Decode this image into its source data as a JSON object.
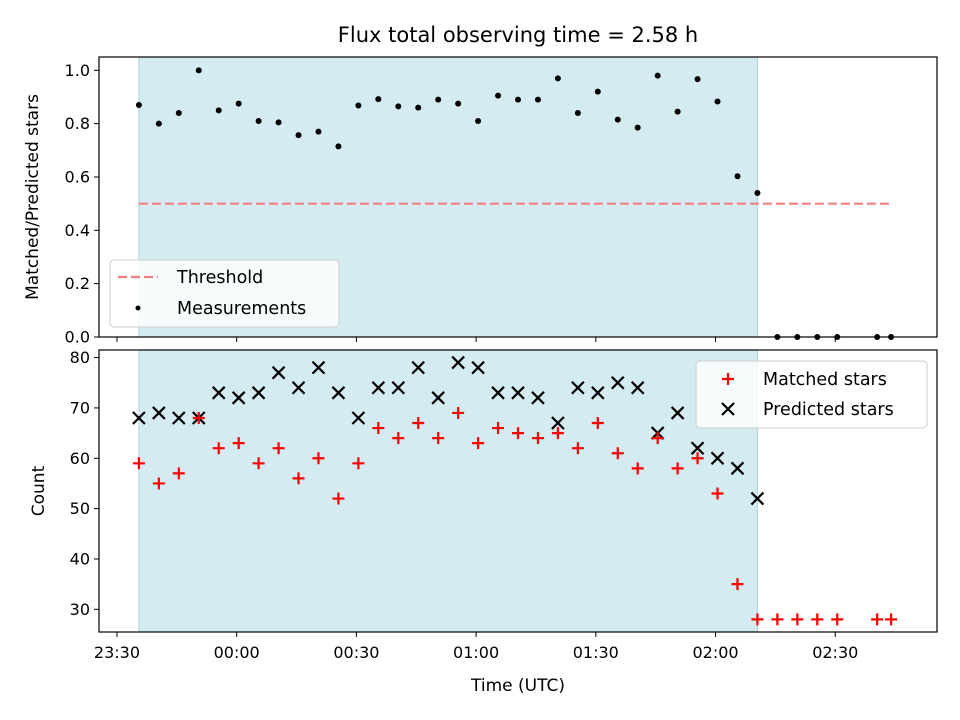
{
  "chart_data": {
    "type": "scatter",
    "title": "Flux total observing time = 2.58 h",
    "xlabel": "Time (UTC)",
    "x_tick_labels": [
      "23:30",
      "00:00",
      "00:30",
      "01:00",
      "01:30",
      "02:00",
      "02:30"
    ],
    "x_tick_minutes": [
      -30,
      0,
      30,
      60,
      90,
      120,
      150
    ],
    "xlim_minutes": [
      -34.5,
      175.5
    ],
    "shaded_span_minutes": [
      -24.5,
      130.5
    ],
    "shade_color": "#d3ebf1",
    "x_minutes": [
      -24.5,
      -19.5,
      -14.5,
      -9.5,
      -4.5,
      0.5,
      5.5,
      10.5,
      15.5,
      20.5,
      25.5,
      30.5,
      35.5,
      40.5,
      45.5,
      50.5,
      55.5,
      60.5,
      65.5,
      70.5,
      75.5,
      80.5,
      85.5,
      90.5,
      95.5,
      100.5,
      105.5,
      110.5,
      115.5,
      120.5,
      125.5,
      130.5,
      135.5,
      140.5,
      145.5,
      150.5,
      160.5,
      164.0
    ],
    "panels": [
      {
        "ylabel": "Matched/Predicted stars",
        "ylim": [
          0,
          1.05
        ],
        "y_tick_values": [
          0.0,
          0.2,
          0.4,
          0.6,
          0.8,
          1.0
        ],
        "y_tick_labels": [
          "0.0",
          "0.2",
          "0.4",
          "0.6",
          "0.8",
          "1.0"
        ],
        "threshold": {
          "name": "Threshold",
          "value": 0.5,
          "x_range_minutes": [
            -24.5,
            164.0
          ],
          "color": "#f08080"
        },
        "series": [
          {
            "name": "Measurements",
            "marker": "dot",
            "color": "#000000",
            "values": [
              0.87,
              0.8,
              0.84,
              1.0,
              0.85,
              0.875,
              0.81,
              0.805,
              0.757,
              0.77,
              0.715,
              0.868,
              0.892,
              0.865,
              0.86,
              0.89,
              0.875,
              0.81,
              0.905,
              0.89,
              0.89,
              0.97,
              0.84,
              0.92,
              0.815,
              0.785,
              0.98,
              0.845,
              0.967,
              0.883,
              0.603,
              0.54,
              0.0,
              0.0,
              0.0,
              0.0,
              0.0,
              0.0
            ]
          }
        ],
        "legend": {
          "placement": "lower-left",
          "entries": [
            "Threshold",
            "Measurements"
          ]
        }
      },
      {
        "ylabel": "Count",
        "ylim": [
          25.5,
          81.5
        ],
        "y_tick_values": [
          30,
          40,
          50,
          60,
          70,
          80
        ],
        "y_tick_labels": [
          "30",
          "40",
          "50",
          "60",
          "70",
          "80"
        ],
        "series": [
          {
            "name": "Matched stars",
            "marker": "plus",
            "color": "#ff0000",
            "values": [
              59,
              55,
              57,
              68,
              62,
              63,
              59,
              62,
              56,
              60,
              52,
              59,
              66,
              64,
              67,
              64,
              69,
              63,
              66,
              65,
              64,
              65,
              62,
              67,
              61,
              58,
              64,
              58,
              60,
              53,
              35,
              28,
              28,
              28,
              28,
              28,
              28,
              28
            ]
          },
          {
            "name": "Predicted stars",
            "marker": "x",
            "color": "#000000",
            "values": [
              68,
              69,
              68,
              68,
              73,
              72,
              73,
              77,
              74,
              78,
              73,
              68,
              74,
              74,
              78,
              72,
              79,
              78,
              73,
              73,
              72,
              67,
              74,
              73,
              75,
              74,
              65,
              69,
              62,
              60,
              58,
              52
            ]
          }
        ],
        "legend": {
          "placement": "upper-right",
          "entries": [
            "Matched stars",
            "Predicted stars"
          ]
        }
      }
    ]
  }
}
